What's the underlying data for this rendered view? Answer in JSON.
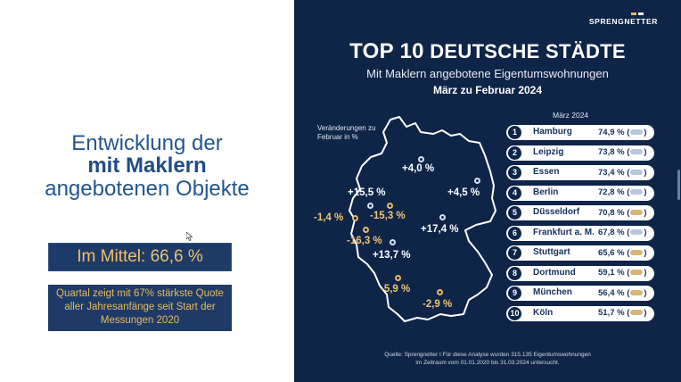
{
  "left": {
    "headline_line1": "Entwicklung der",
    "headline_line2": "mit Maklern",
    "headline_line3": "angebotenen Objekte",
    "average": "Im Mittel: 66,6 %",
    "note": "Quartal zeigt mit 67% stärkste Quote aller Jahresanfänge seit Start der Messungen 2020"
  },
  "infographic": {
    "brand": "SPRENGNETTER",
    "title_big": "TOP 10",
    "title_rest": "DEUTSCHE STÄDTE",
    "subtitle": "Mit Maklern angebotene Eigentumswohnungen",
    "period": "März zu Februar 2024",
    "map_caption": "Veränderungen zu Februar in %",
    "map_values": [
      {
        "text": "+4,0 %",
        "sign": "pos"
      },
      {
        "text": "+4,5 %",
        "sign": "pos"
      },
      {
        "text": "+15,5 %",
        "sign": "pos"
      },
      {
        "text": "-15,3 %",
        "sign": "neg"
      },
      {
        "text": "-1,4 %",
        "sign": "neg"
      },
      {
        "text": "+17,4 %",
        "sign": "pos"
      },
      {
        "text": "-16,3 %",
        "sign": "neg"
      },
      {
        "text": "+13,7 %",
        "sign": "pos"
      },
      {
        "text": "-5,9 %",
        "sign": "neg"
      },
      {
        "text": "-2,9 %",
        "sign": "neg"
      }
    ],
    "month_label": "März 2024",
    "ranking": [
      {
        "rank": "1",
        "city": "Hamburg",
        "value": "74,9 %",
        "trend": "up"
      },
      {
        "rank": "2",
        "city": "Leipzig",
        "value": "73,8 %",
        "trend": "up"
      },
      {
        "rank": "3",
        "city": "Essen",
        "value": "73,4 %",
        "trend": "up"
      },
      {
        "rank": "4",
        "city": "Berlin",
        "value": "72,8 %",
        "trend": "up"
      },
      {
        "rank": "5",
        "city": "Düsseldorf",
        "value": "70,8 %",
        "trend": "down"
      },
      {
        "rank": "6",
        "city": "Frankfurt a. M.",
        "value": "67,8 %",
        "trend": "up"
      },
      {
        "rank": "7",
        "city": "Stuttgart",
        "value": "65,6 %",
        "trend": "down"
      },
      {
        "rank": "8",
        "city": "Dortmund",
        "value": "59,1 %",
        "trend": "down"
      },
      {
        "rank": "9",
        "city": "München",
        "value": "56,4 %",
        "trend": "down"
      },
      {
        "rank": "10",
        "city": "Köln",
        "value": "51,7 %",
        "trend": "down"
      }
    ],
    "source_line1": "Quelle: Sprengnetter I Für diese Analyse wurden 315.135 Eigentumswohnungen",
    "source_line2": "im Zeitraum vom 01.01.2020 bis 31.03.2024 untersucht."
  },
  "colors": {
    "panel_bg": "#0e2547",
    "accent_gold": "#f0c476",
    "headline_blue": "#24568f"
  }
}
